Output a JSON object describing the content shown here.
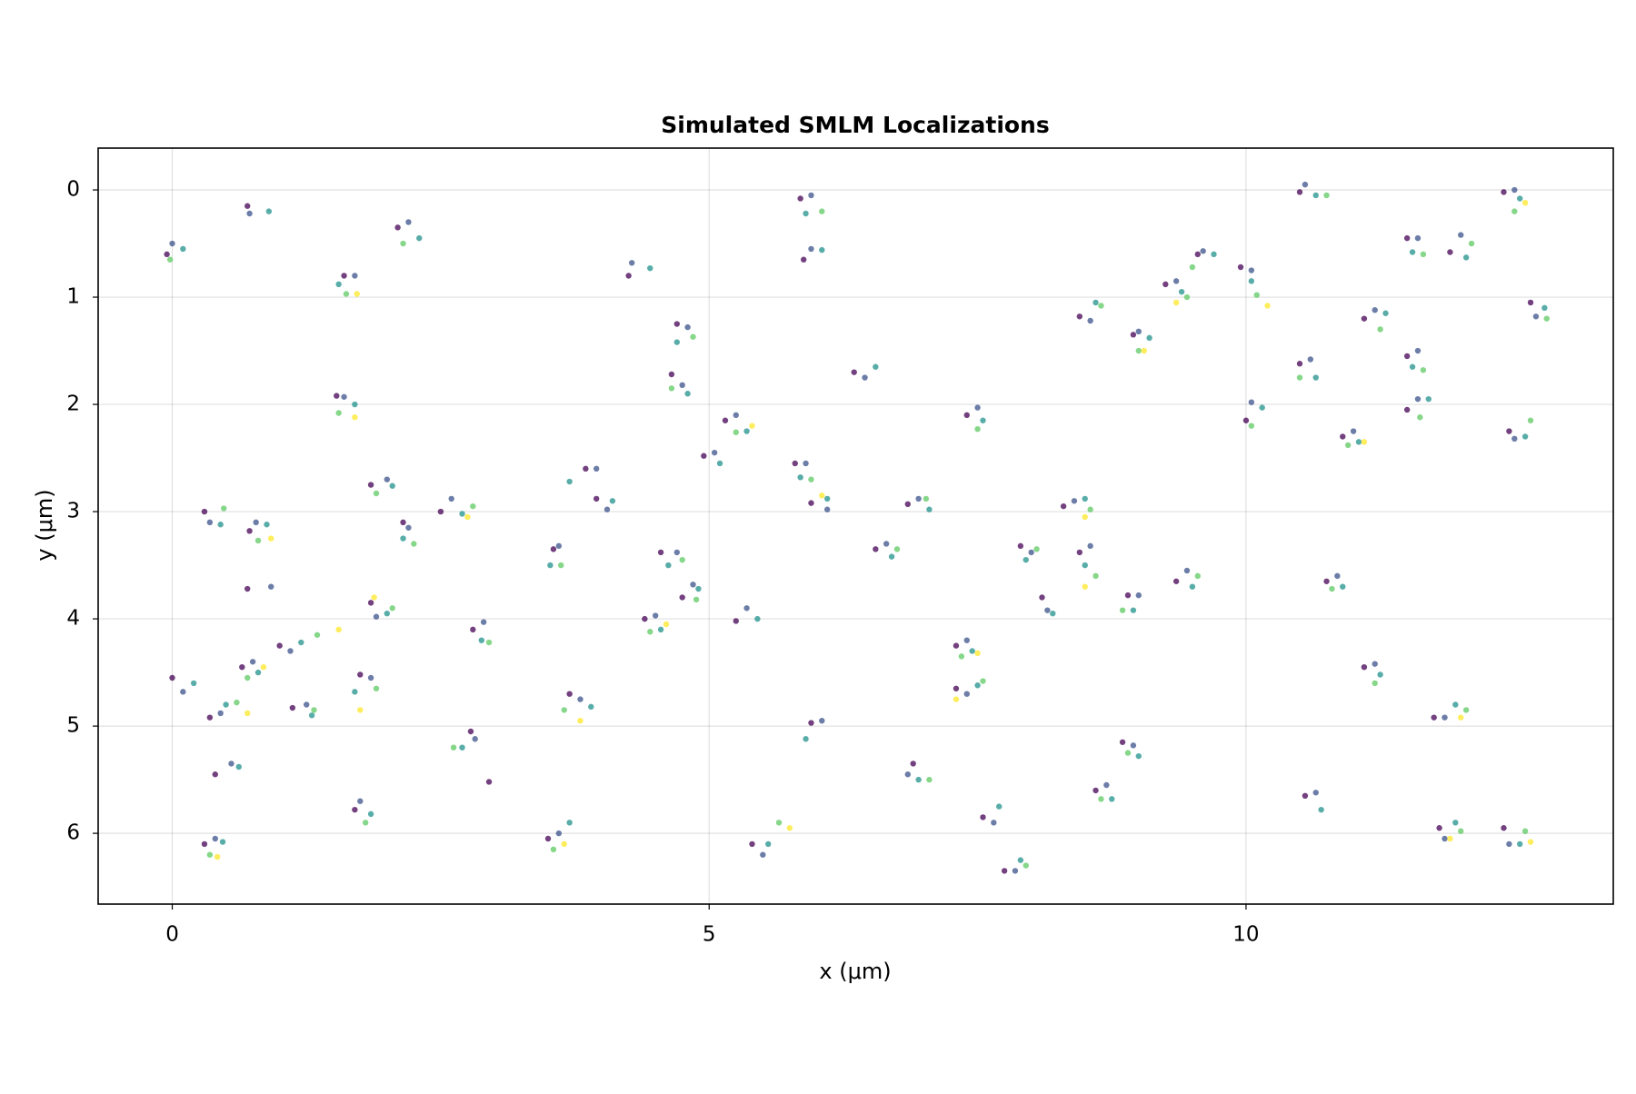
{
  "chart_data": {
    "type": "scatter",
    "title": "Simulated SMLM Localizations",
    "x_label": "x (μm)",
    "y_label": "y (μm)",
    "xlim": [
      -0.69,
      13.42
    ],
    "ylim": [
      -0.39,
      6.66
    ],
    "y_reversed": true,
    "xticks": [
      0,
      5,
      10
    ],
    "yticks": [
      0,
      1,
      2,
      3,
      4,
      5,
      6
    ],
    "grid": true,
    "series": [
      {
        "color": "#440154",
        "x": [
          -0.05,
          0.7,
          2.1,
          1.6,
          4.25,
          5.85,
          5.88,
          4.7,
          4.65,
          1.53,
          5.15,
          4.95,
          3.85,
          3.95,
          1.85,
          2.15,
          2.5,
          0.3,
          0.72,
          0.7,
          3.55,
          4.55,
          4.75,
          4.4,
          5.25,
          1.85,
          2.8,
          1.0,
          0.65,
          0.0,
          0.35,
          1.12,
          1.75,
          3.7,
          2.78,
          2.95,
          0.4,
          1.7,
          0.3,
          3.5,
          5.4,
          5.95,
          6.35,
          5.8,
          5.95,
          6.55,
          6.85,
          7.4,
          7.3,
          7.3,
          6.9,
          7.55,
          7.75,
          8.45,
          8.95,
          9.25,
          9.55,
          9.95,
          10.0,
          10.5,
          10.5,
          11.1,
          11.5,
          11.9,
          11.5,
          11.5,
          10.9,
          12.45,
          12.4,
          12.65,
          10.75,
          11.1,
          11.75,
          10.55,
          11.8,
          12.4,
          8.85,
          8.6,
          8.9,
          9.35,
          8.45,
          8.3,
          7.9,
          8.1
        ],
        "y": [
          0.6,
          0.15,
          0.35,
          0.8,
          0.8,
          0.08,
          0.65,
          1.25,
          1.72,
          1.92,
          2.15,
          2.48,
          2.6,
          2.88,
          2.75,
          3.1,
          3.0,
          3.0,
          3.18,
          3.72,
          3.35,
          3.38,
          3.8,
          4.0,
          4.02,
          3.85,
          4.1,
          4.25,
          4.45,
          4.55,
          4.92,
          4.83,
          4.52,
          4.7,
          5.05,
          5.52,
          5.45,
          5.78,
          6.1,
          6.05,
          6.1,
          4.97,
          1.7,
          2.55,
          2.92,
          3.35,
          2.93,
          2.1,
          4.25,
          4.65,
          5.35,
          5.85,
          6.35,
          1.18,
          1.35,
          0.88,
          0.6,
          0.72,
          2.15,
          1.62,
          0.02,
          1.2,
          0.45,
          0.58,
          1.55,
          2.05,
          2.3,
          2.25,
          0.02,
          1.05,
          3.65,
          4.45,
          4.92,
          5.65,
          5.95,
          5.95,
          5.15,
          5.6,
          3.78,
          3.65,
          3.38,
          2.95,
          3.32,
          3.8
        ]
      },
      {
        "color": "#3b528b",
        "x": [
          0.0,
          0.72,
          2.2,
          1.7,
          4.28,
          5.95,
          5.95,
          4.8,
          4.75,
          1.6,
          5.25,
          5.05,
          3.95,
          4.05,
          2.0,
          2.2,
          2.6,
          0.35,
          0.78,
          0.92,
          3.6,
          4.7,
          4.85,
          4.5,
          5.35,
          1.9,
          2.9,
          1.1,
          0.75,
          0.1,
          0.45,
          1.25,
          1.85,
          3.8,
          2.82,
          0.55,
          1.75,
          0.4,
          3.6,
          5.5,
          6.05,
          6.45,
          5.9,
          6.1,
          6.65,
          6.95,
          7.5,
          7.4,
          7.4,
          6.85,
          7.65,
          7.85,
          8.55,
          9.0,
          9.35,
          9.6,
          10.05,
          10.05,
          10.6,
          10.55,
          11.2,
          11.6,
          12.0,
          11.6,
          11.6,
          11.0,
          12.5,
          12.5,
          12.7,
          10.85,
          11.2,
          11.85,
          10.65,
          11.85,
          12.45,
          8.95,
          8.7,
          9.0,
          9.45,
          8.55,
          8.4,
          8.0,
          8.15
        ],
        "y": [
          0.5,
          0.22,
          0.3,
          0.8,
          0.68,
          0.05,
          0.55,
          1.28,
          1.82,
          1.93,
          2.1,
          2.45,
          2.6,
          2.98,
          2.7,
          3.15,
          2.88,
          3.1,
          3.1,
          3.7,
          3.32,
          3.38,
          3.68,
          3.97,
          3.9,
          3.98,
          4.03,
          4.3,
          4.4,
          4.68,
          4.88,
          4.8,
          4.55,
          4.75,
          5.12,
          5.35,
          5.7,
          6.05,
          6.0,
          6.2,
          4.95,
          1.75,
          2.55,
          2.98,
          3.3,
          2.88,
          2.03,
          4.2,
          4.7,
          5.45,
          5.9,
          6.35,
          1.22,
          1.32,
          0.85,
          0.57,
          0.75,
          1.98,
          1.58,
          -0.05,
          1.12,
          0.45,
          0.42,
          1.5,
          1.95,
          2.25,
          2.32,
          0.0,
          1.18,
          3.6,
          4.42,
          4.92,
          5.62,
          6.05,
          6.1,
          5.18,
          5.55,
          3.78,
          3.55,
          3.32,
          2.9,
          3.38,
          3.92
        ]
      },
      {
        "color": "#21918c",
        "x": [
          0.1,
          0.9,
          2.3,
          1.55,
          4.45,
          5.9,
          6.05,
          4.7,
          4.8,
          1.7,
          5.35,
          5.1,
          3.7,
          4.1,
          2.05,
          2.15,
          2.7,
          0.45,
          0.88,
          3.52,
          4.62,
          4.9,
          4.55,
          5.45,
          2.0,
          2.88,
          1.2,
          0.8,
          0.2,
          0.5,
          1.3,
          1.7,
          3.9,
          2.7,
          0.62,
          1.85,
          0.47,
          3.7,
          5.55,
          5.9,
          6.55,
          5.85,
          6.1,
          6.7,
          7.05,
          7.55,
          7.45,
          7.5,
          6.95,
          7.7,
          7.9,
          8.6,
          9.1,
          9.4,
          9.7,
          10.05,
          10.15,
          10.65,
          10.65,
          11.3,
          11.55,
          12.05,
          11.55,
          11.7,
          11.05,
          12.6,
          12.55,
          12.78,
          10.9,
          11.25,
          11.95,
          10.7,
          11.95,
          12.55,
          9.0,
          8.75,
          8.95,
          9.5,
          8.5,
          8.5,
          7.95,
          8.2
        ],
        "y": [
          0.55,
          0.2,
          0.45,
          0.88,
          0.73,
          0.22,
          0.56,
          1.42,
          1.9,
          2.0,
          2.25,
          2.55,
          2.72,
          2.9,
          2.76,
          3.25,
          3.02,
          3.12,
          3.12,
          3.5,
          3.5,
          3.72,
          4.1,
          4.0,
          3.95,
          4.2,
          4.22,
          4.5,
          4.6,
          4.8,
          4.9,
          4.68,
          4.82,
          5.2,
          5.38,
          5.82,
          6.08,
          5.9,
          6.1,
          5.12,
          1.65,
          2.68,
          2.88,
          3.42,
          2.98,
          2.15,
          4.3,
          4.62,
          5.5,
          5.75,
          6.25,
          1.05,
          1.38,
          0.95,
          0.6,
          0.85,
          2.03,
          1.75,
          0.05,
          1.15,
          0.58,
          0.63,
          1.65,
          1.95,
          2.35,
          2.3,
          0.08,
          1.1,
          3.7,
          4.52,
          4.8,
          5.78,
          5.9,
          6.1,
          5.28,
          5.68,
          3.92,
          3.7,
          3.5,
          2.88,
          3.45,
          3.95
        ]
      },
      {
        "color": "#5ec962",
        "x": [
          -0.02,
          2.15,
          1.62,
          6.05,
          4.85,
          4.65,
          1.55,
          5.25,
          1.9,
          2.25,
          2.8,
          0.48,
          0.8,
          3.62,
          4.75,
          4.88,
          4.45,
          2.05,
          2.95,
          1.35,
          0.7,
          0.6,
          1.32,
          1.9,
          3.65,
          2.62,
          1.8,
          0.35,
          3.55,
          5.65,
          5.95,
          6.75,
          7.02,
          7.5,
          7.35,
          7.55,
          7.05,
          7.95,
          8.65,
          9.0,
          9.45,
          9.5,
          10.1,
          10.05,
          10.5,
          10.75,
          11.25,
          11.65,
          12.1,
          11.65,
          11.62,
          10.95,
          12.65,
          12.5,
          12.8,
          10.8,
          11.2,
          12.05,
          12.0,
          12.6,
          8.9,
          8.65,
          8.85,
          9.55,
          8.6,
          8.55,
          8.05
        ],
        "y": [
          0.65,
          0.5,
          0.97,
          0.2,
          1.37,
          1.85,
          2.08,
          2.26,
          2.83,
          3.3,
          2.95,
          2.97,
          3.27,
          3.5,
          3.45,
          3.82,
          4.12,
          3.9,
          4.22,
          4.15,
          4.55,
          4.78,
          4.85,
          4.65,
          4.85,
          5.2,
          5.9,
          6.2,
          6.15,
          5.9,
          2.7,
          3.35,
          2.88,
          2.23,
          4.35,
          4.58,
          5.5,
          6.3,
          1.08,
          1.5,
          1.0,
          0.72,
          0.98,
          2.2,
          1.75,
          0.05,
          1.3,
          0.6,
          0.5,
          1.68,
          2.12,
          2.38,
          2.15,
          0.2,
          1.2,
          3.72,
          4.6,
          4.85,
          5.98,
          5.98,
          5.25,
          5.68,
          3.92,
          3.6,
          3.6,
          2.98,
          3.35
        ]
      },
      {
        "color": "#fde725",
        "x": [
          1.72,
          1.7,
          5.4,
          2.75,
          0.92,
          4.6,
          1.88,
          1.55,
          0.85,
          0.7,
          1.75,
          3.8,
          0.42,
          3.65,
          5.75,
          6.05,
          7.5,
          7.3,
          9.05,
          9.35,
          10.2,
          11.1,
          12.6,
          12.0,
          11.9,
          12.65,
          8.5,
          8.5
        ],
        "y": [
          0.97,
          2.12,
          2.2,
          3.05,
          3.25,
          4.05,
          3.8,
          4.1,
          4.45,
          4.88,
          4.85,
          4.95,
          6.22,
          6.1,
          5.95,
          2.85,
          4.32,
          4.75,
          1.5,
          1.05,
          1.08,
          2.35,
          0.12,
          4.92,
          6.05,
          6.08,
          3.7,
          3.05
        ]
      }
    ]
  }
}
